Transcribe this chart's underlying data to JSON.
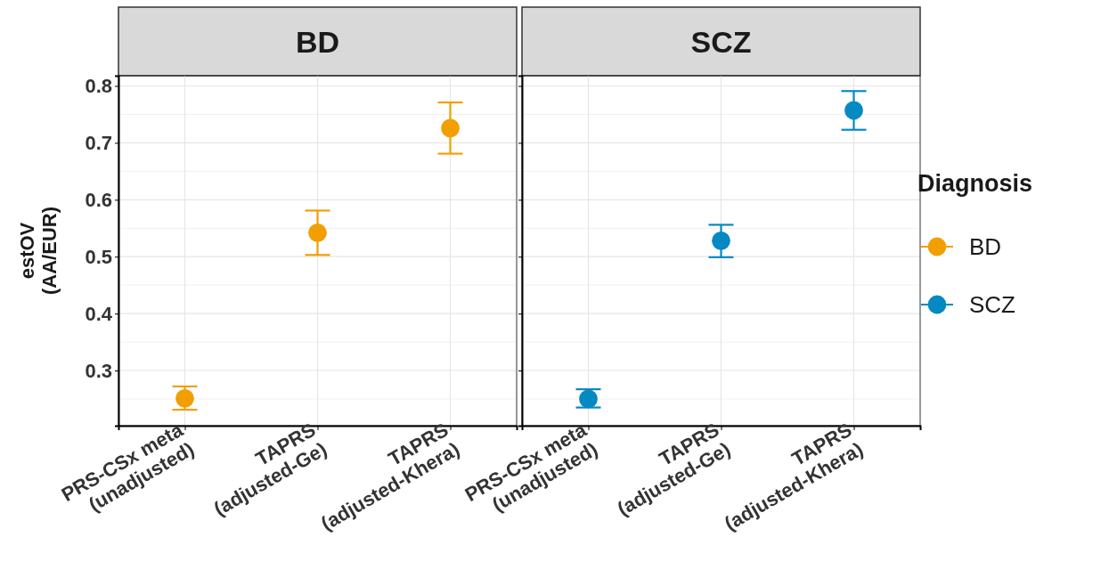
{
  "chart_data": [
    {
      "type": "scatter",
      "title": "BD",
      "ylabel": "estOV\n(AA/EUR)",
      "categories": [
        "PRS-CSx meta\n(unadjusted)",
        "TAPRS\n(adjusted-Ge)",
        "TAPRS\n(adjusted-Khera)"
      ],
      "ylim": [
        0.203,
        0.818
      ],
      "yticks": [
        0.3,
        0.4,
        0.5,
        0.6,
        0.7,
        0.8
      ],
      "grid": true,
      "marker": "circle",
      "series": [
        {
          "name": "BD",
          "color": "#f29f05",
          "values": [
            0.251,
            0.542,
            0.726
          ],
          "errors": [
            [
              0.231,
              0.272
            ],
            [
              0.503,
              0.581
            ],
            [
              0.681,
              0.771
            ]
          ]
        }
      ]
    },
    {
      "type": "scatter",
      "title": "SCZ",
      "categories": [
        "PRS-CSx meta\n(unadjusted)",
        "TAPRS\n(adjusted-Ge)",
        "TAPRS\n(adjusted-Khera)"
      ],
      "ylim": [
        0.203,
        0.818
      ],
      "yticks": [
        0.3,
        0.4,
        0.5,
        0.6,
        0.7,
        0.8
      ],
      "grid": true,
      "marker": "circle",
      "tick_labels": "x",
      "legend": "right",
      "legend_title": "Diagnosis",
      "series": [
        {
          "name": "SCZ",
          "color": "#0589c2",
          "values": [
            0.25,
            0.528,
            0.757
          ],
          "errors": [
            [
              0.235,
              0.267
            ],
            [
              0.499,
              0.556
            ],
            [
              0.723,
              0.791
            ]
          ]
        }
      ]
    }
  ]
}
